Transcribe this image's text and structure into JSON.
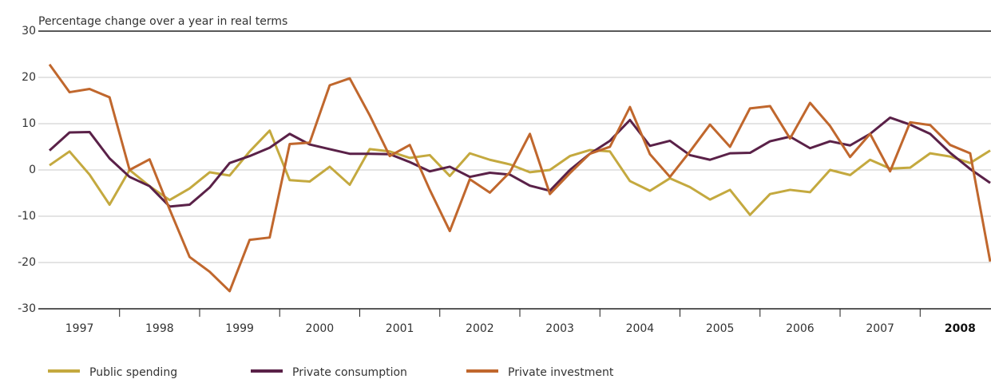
{
  "chart_data": {
    "type": "line",
    "y_label": "Percentage change over a year in real terms",
    "years": [
      "1997",
      "1998",
      "1999",
      "2000",
      "2001",
      "2002",
      "2003",
      "2004",
      "2005",
      "2006",
      "2007",
      "2008"
    ],
    "periods_per_year": 4,
    "bold_years": [
      "2008"
    ],
    "ylim": [
      -30,
      30
    ],
    "yticks": [
      -30,
      -20,
      -10,
      0,
      10,
      20,
      30
    ],
    "grid": true,
    "legend": "bottom",
    "series": [
      {
        "name": "Public spending",
        "color": "#c4a93f",
        "values": [
          1,
          4,
          -1,
          -7.5,
          0,
          -3.5,
          -6.5,
          -4,
          -0.5,
          -1.2,
          4,
          8.5,
          -2.2,
          -2.5,
          0.7,
          -3.2,
          4.5,
          4,
          2.6,
          3.2,
          -1.3,
          3.6,
          2.2,
          1.2,
          -0.5,
          0,
          3,
          4.3,
          4,
          -2.4,
          -4.5,
          -1.8,
          -3.7,
          -6.4,
          -4.3,
          -9.7,
          -5.2,
          -4.3,
          -4.8,
          0,
          -1.1,
          2.2,
          0.3,
          0.5,
          3.6,
          2.9,
          1.5,
          4.2
        ]
      },
      {
        "name": "Private consumption",
        "color": "#5a2148",
        "values": [
          4.2,
          8.1,
          8.2,
          2.5,
          -1.5,
          -3.5,
          -7.9,
          -7.5,
          -3.8,
          1.5,
          3,
          4.8,
          7.8,
          5.5,
          4.5,
          3.5,
          3.5,
          3.4,
          1.7,
          -0.3,
          0.7,
          -1.5,
          -0.6,
          -1,
          -3.4,
          -4.5,
          0,
          3.5,
          6.3,
          10.8,
          5.2,
          6.3,
          3.2,
          2.2,
          3.6,
          3.7,
          6.2,
          7.2,
          4.7,
          6.2,
          5.3,
          7.8,
          11.3,
          9.8,
          7.8,
          3.7,
          0.2,
          -2.8
        ]
      },
      {
        "name": "Private investment",
        "color": "#c0672d",
        "values": [
          22.8,
          16.8,
          17.5,
          15.7,
          0,
          2.3,
          -8.5,
          -18.8,
          -22,
          -26.2,
          -15.1,
          -14.6,
          5.6,
          5.9,
          18.3,
          19.8,
          11.8,
          3,
          5.4,
          -4.3,
          -13.2,
          -2,
          -4.9,
          -0.5,
          7.8,
          -5.2,
          -0.7,
          3.5,
          5,
          13.6,
          3.4,
          -1.5,
          4,
          9.8,
          5,
          13.3,
          13.8,
          6.8,
          14.5,
          9.5,
          2.8,
          7.8,
          -0.3,
          10.3,
          9.7,
          5.4,
          3.6,
          -19.8
        ]
      }
    ]
  }
}
